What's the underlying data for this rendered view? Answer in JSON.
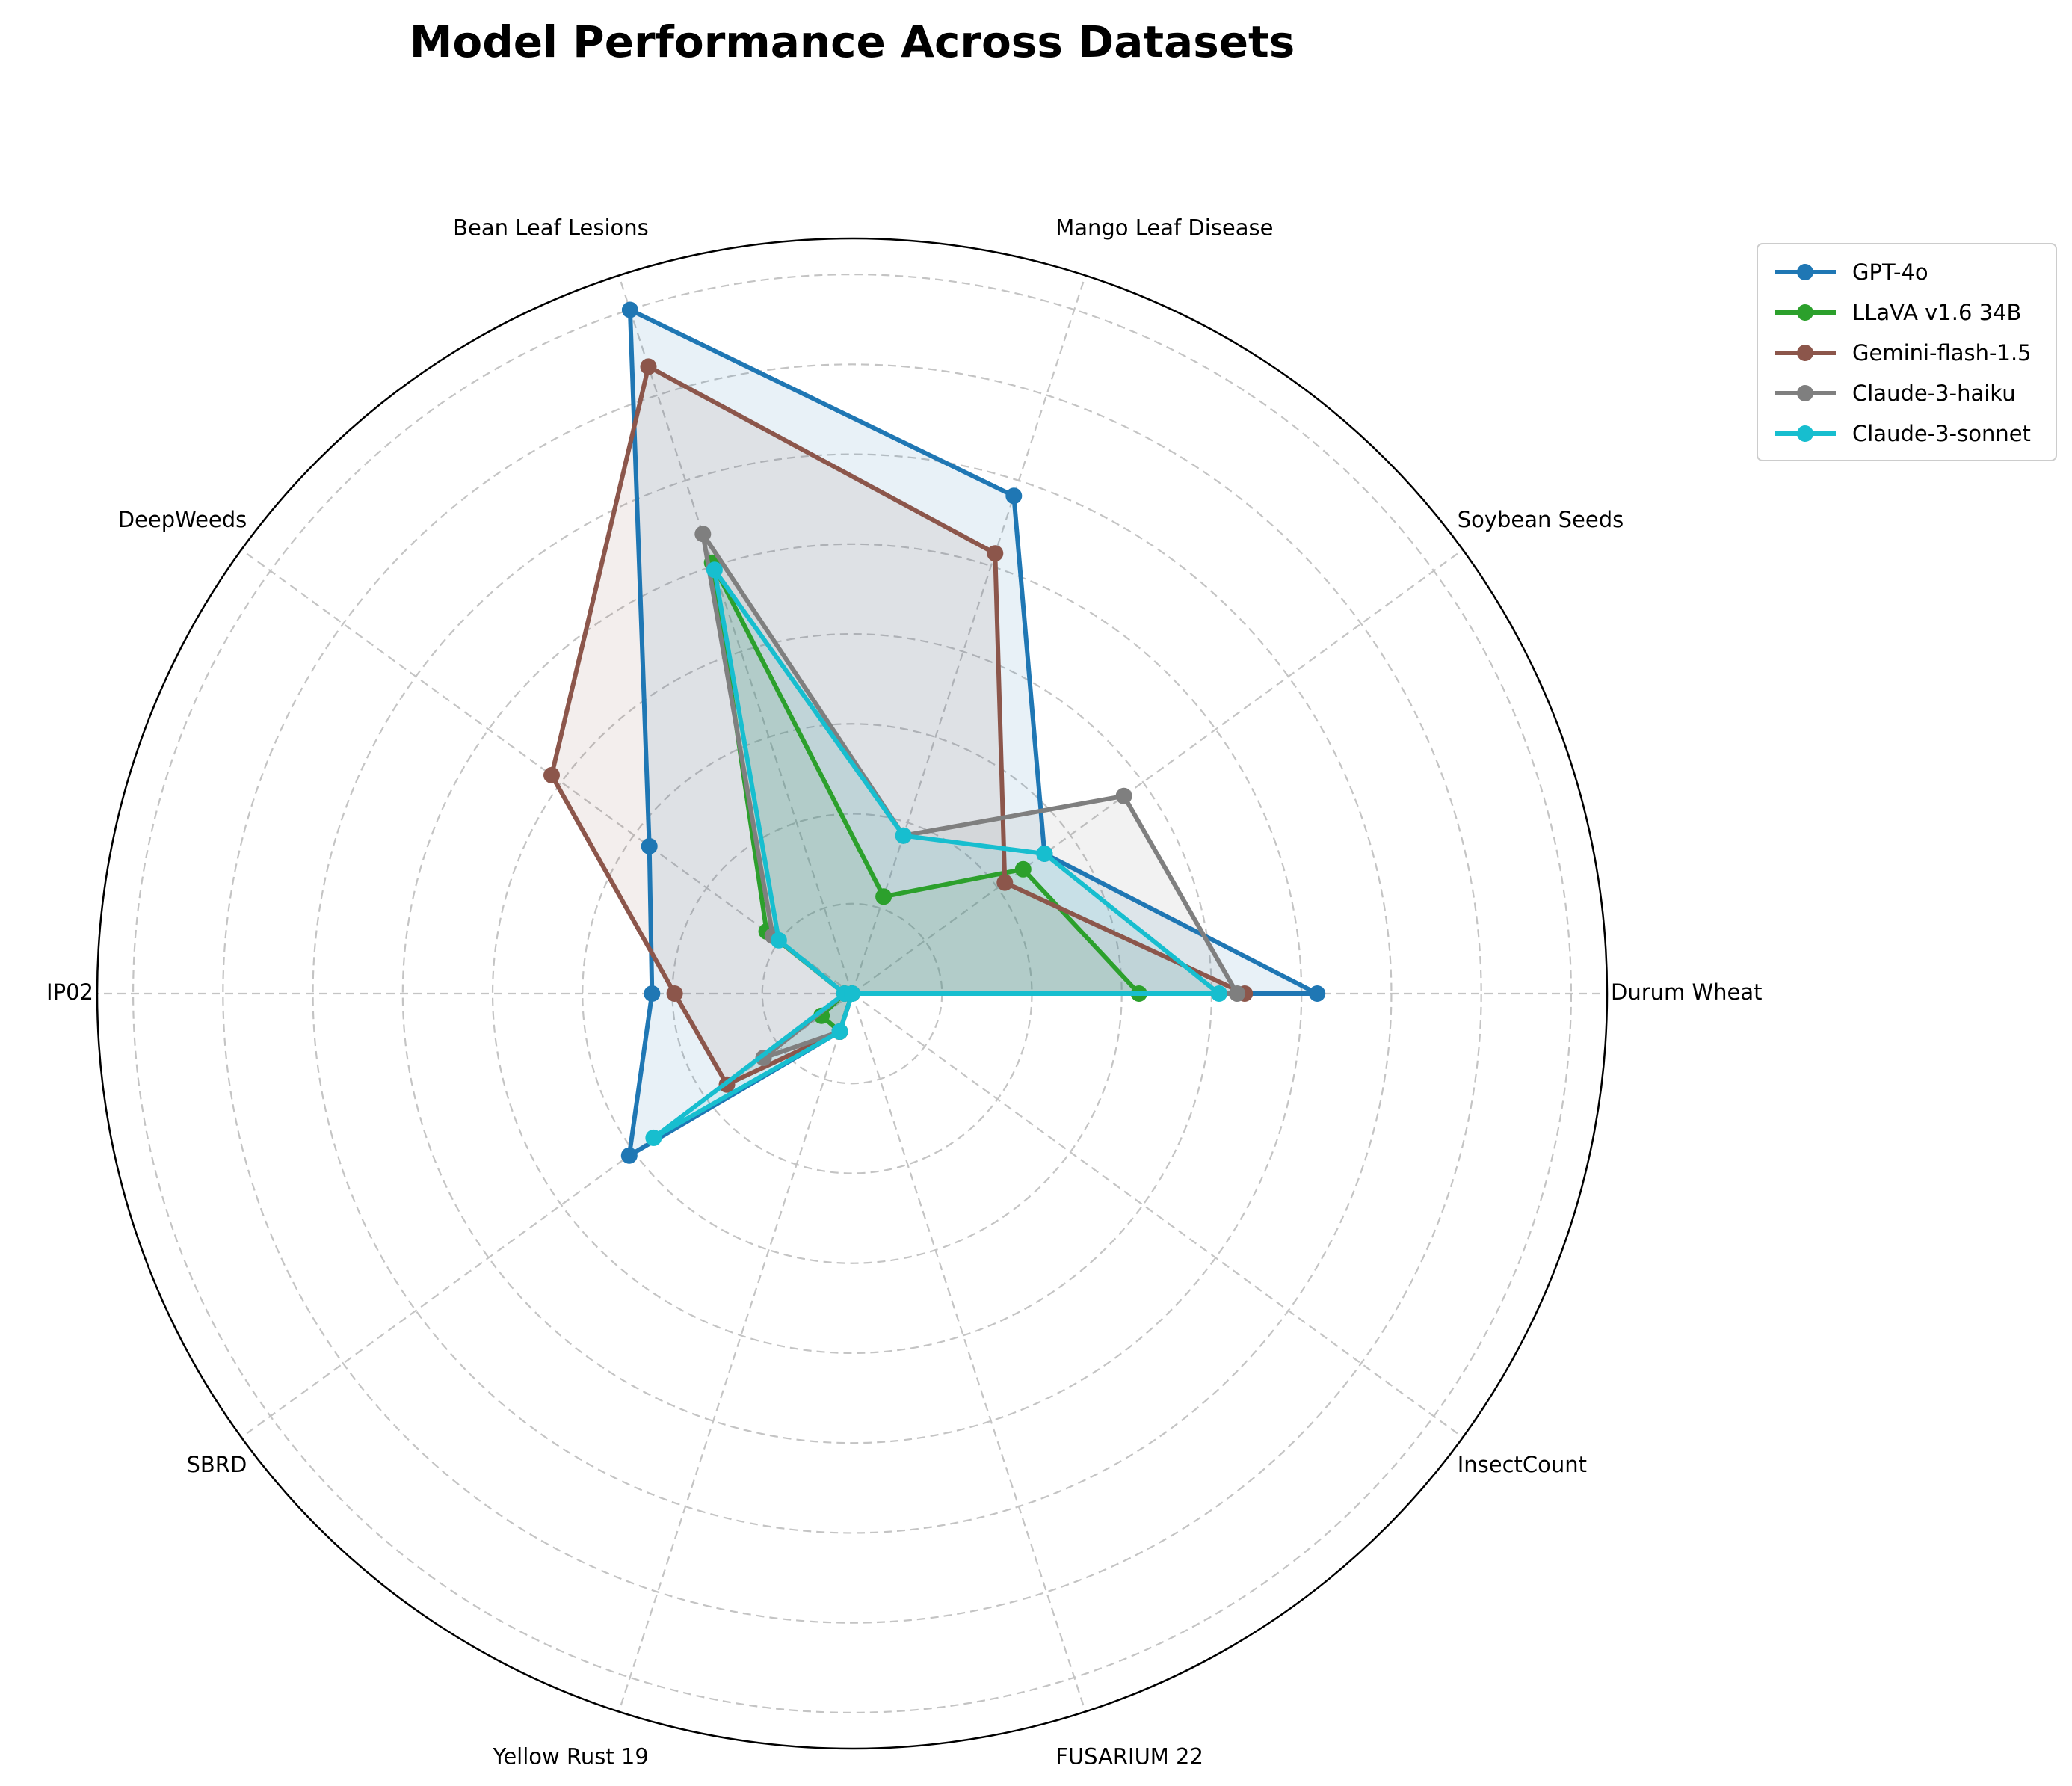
{
  "chart_data": {
    "type": "radar",
    "title": "Model Performance Across Datasets",
    "categories": [
      "Durum Wheat",
      "Soybean Seeds",
      "Mango Leaf Disease",
      "Bean Leaf Lesions",
      "DeepWeeds",
      "IP02",
      "SBRD",
      "Yellow Rust 19",
      "FUSARIUM 22",
      "InsectCount"
    ],
    "rmax": 100,
    "grid": true,
    "legend_position": "top-right",
    "series": [
      {
        "name": "GPT-4o",
        "color": "#1f77b4",
        "values": [
          61.6,
          31.5,
          69.3,
          95.2,
          33.2,
          26.5,
          36.5,
          5.3,
          0.0,
          0.0
        ]
      },
      {
        "name": "LLaVA v1.6 34B",
        "color": "#2ca02c",
        "values": [
          38.0,
          28.0,
          13.5,
          60.0,
          14.0,
          1.0,
          5.0,
          5.3,
          0.0,
          0.0
        ]
      },
      {
        "name": "Gemini-flash-1.5",
        "color": "#8c564b",
        "values": [
          52.0,
          25.0,
          61.3,
          87.3,
          49.2,
          23.5,
          20.5,
          5.3,
          0.0,
          0.0
        ]
      },
      {
        "name": "Claude-3-haiku",
        "color": "#7f7f7f",
        "values": [
          51.0,
          44.5,
          22.0,
          64.0,
          13.0,
          1.0,
          14.5,
          5.3,
          0.0,
          0.0
        ]
      },
      {
        "name": "Claude-3-sonnet",
        "color": "#17becf",
        "values": [
          48.6,
          31.5,
          22.0,
          59.0,
          12.0,
          1.0,
          32.5,
          5.3,
          0.0,
          0.0
        ]
      }
    ]
  }
}
